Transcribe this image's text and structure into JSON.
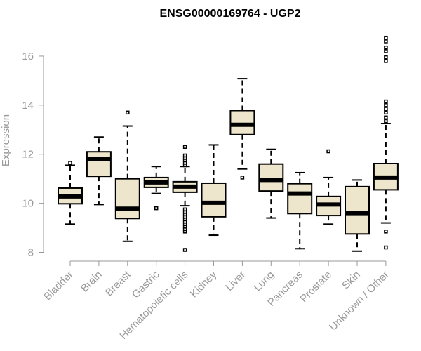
{
  "chart_data": {
    "type": "box",
    "title": "ENSG00000169764 - UGP2",
    "xlabel": "",
    "ylabel": "Expression",
    "ylim": [
      7.9,
      17.2
    ],
    "yticks": [
      8,
      10,
      12,
      14,
      16
    ],
    "ytick_labels": [
      "8",
      "10",
      "12",
      "14",
      "16"
    ],
    "box_fill": "#ede6cc",
    "median_color": "#000000",
    "axis_color": "#999999",
    "categories": [
      "Bladder",
      "Brain",
      "Breast",
      "Gastric",
      "Hematopoietic cells",
      "Kidney",
      "Liver",
      "Lung",
      "Pancreas",
      "Prostate",
      "Skin",
      "Unknown / Other"
    ],
    "boxes": [
      {
        "category": "Bladder",
        "whisker_low": 9.15,
        "q1": 9.98,
        "median": 10.28,
        "q3": 10.62,
        "whisker_high": 11.55,
        "outliers": [
          11.65
        ]
      },
      {
        "category": "Brain",
        "whisker_low": 9.95,
        "q1": 11.1,
        "median": 11.8,
        "q3": 12.1,
        "whisker_high": 12.7,
        "outliers": []
      },
      {
        "category": "Breast",
        "whisker_low": 8.45,
        "q1": 9.38,
        "median": 9.78,
        "q3": 11.0,
        "whisker_high": 13.15,
        "outliers": [
          13.7
        ]
      },
      {
        "category": "Gastric",
        "whisker_low": 10.4,
        "q1": 10.65,
        "median": 10.85,
        "q3": 11.05,
        "whisker_high": 11.5,
        "outliers": [
          9.8
        ]
      },
      {
        "category": "Hematopoietic cells",
        "whisker_low": 9.9,
        "q1": 10.45,
        "median": 10.68,
        "q3": 10.88,
        "whisker_high": 11.5,
        "outliers": [
          8.1,
          8.85,
          8.95,
          9.05,
          9.15,
          9.25,
          9.35,
          9.45,
          9.55,
          9.65,
          9.75,
          11.55,
          11.65,
          11.75,
          11.85,
          11.95,
          12.3
        ]
      },
      {
        "category": "Kidney",
        "whisker_low": 8.7,
        "q1": 9.45,
        "median": 10.02,
        "q3": 10.82,
        "whisker_high": 12.38,
        "outliers": []
      },
      {
        "category": "Liver",
        "whisker_low": 11.4,
        "q1": 12.8,
        "median": 13.2,
        "q3": 13.78,
        "whisker_high": 15.08,
        "outliers": [
          11.05
        ]
      },
      {
        "category": "Lung",
        "whisker_low": 9.4,
        "q1": 10.5,
        "median": 10.95,
        "q3": 11.6,
        "whisker_high": 12.2,
        "outliers": []
      },
      {
        "category": "Pancreas",
        "whisker_low": 8.15,
        "q1": 9.58,
        "median": 10.4,
        "q3": 10.8,
        "whisker_high": 11.25,
        "outliers": []
      },
      {
        "category": "Prostate",
        "whisker_low": 9.15,
        "q1": 9.5,
        "median": 9.95,
        "q3": 10.28,
        "whisker_high": 11.05,
        "outliers": [
          12.12
        ]
      },
      {
        "category": "Skin",
        "whisker_low": 8.05,
        "q1": 8.75,
        "median": 9.6,
        "q3": 10.68,
        "whisker_high": 10.95,
        "outliers": []
      },
      {
        "category": "Unknown / Other",
        "whisker_low": 9.2,
        "q1": 10.55,
        "median": 11.05,
        "q3": 11.62,
        "whisker_high": 13.25,
        "outliers": [
          8.2,
          8.85,
          13.35,
          13.5,
          13.7,
          13.85,
          14.0,
          14.15,
          15.8,
          15.95,
          16.2,
          16.35,
          16.6,
          16.75
        ]
      }
    ]
  }
}
